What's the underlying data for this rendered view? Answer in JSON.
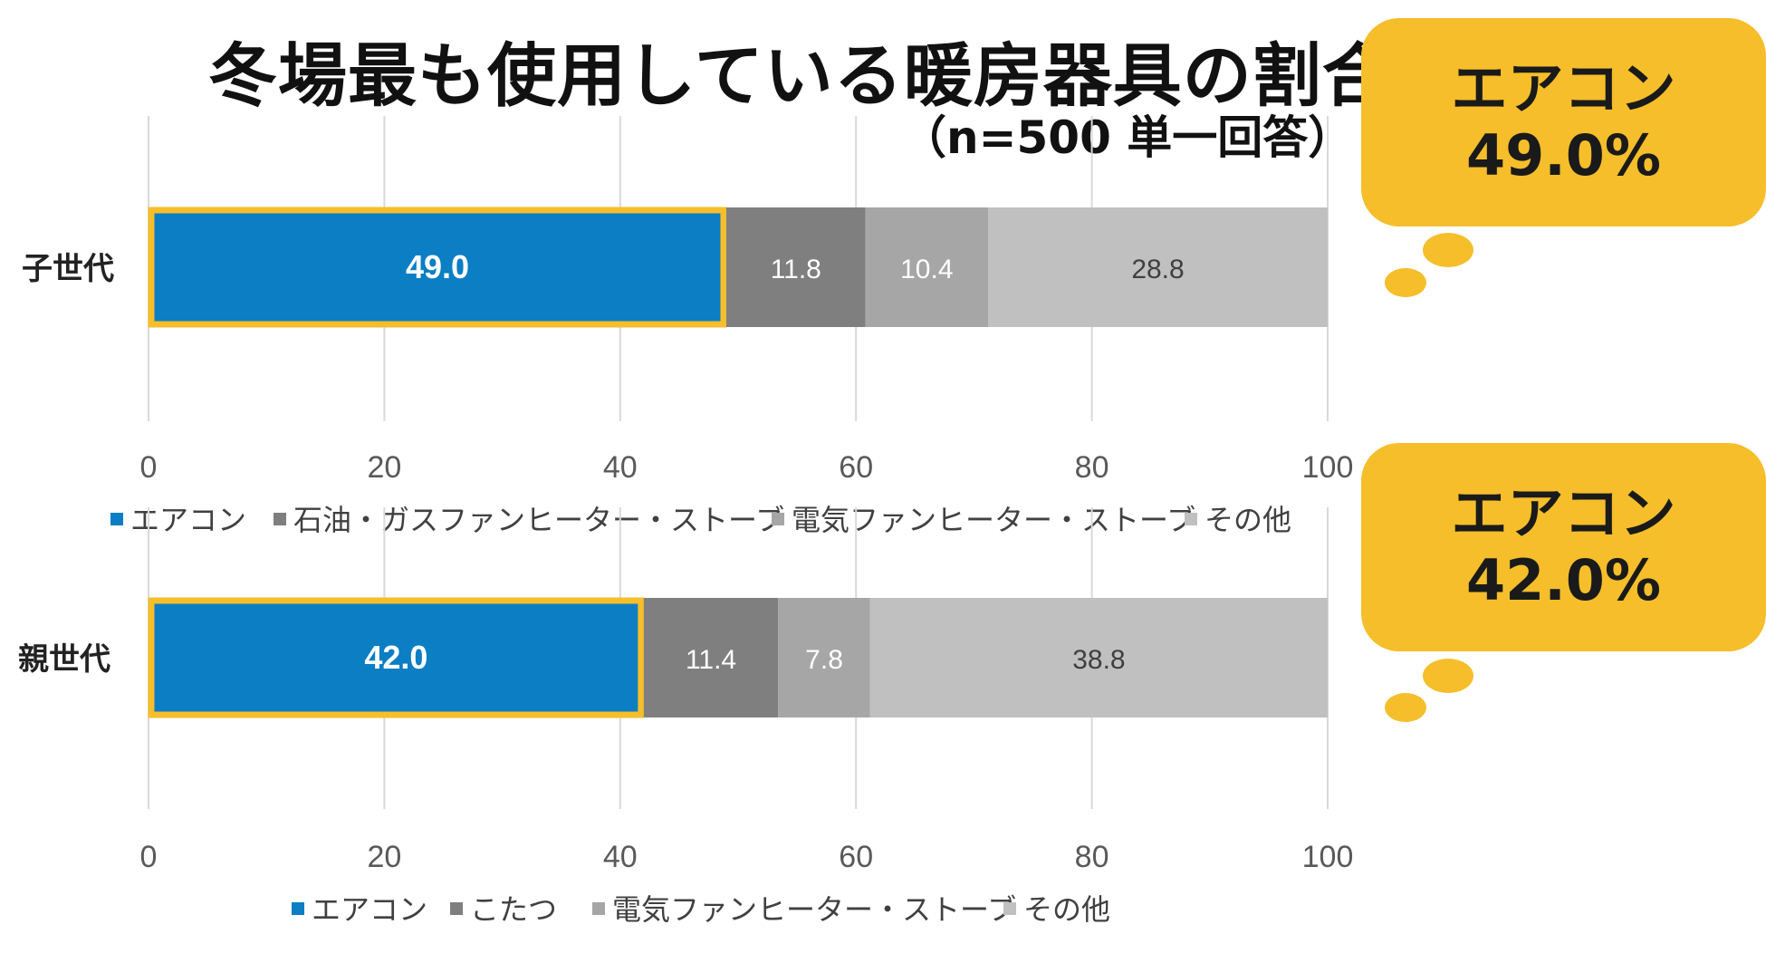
{
  "title": "冬場最も使用している暖房器具の割合",
  "subtitle": "（n=500 単一回答）",
  "callouts": [
    {
      "label": "エアコン",
      "value": "49.0%"
    },
    {
      "label": "エアコン",
      "value": "42.0%"
    }
  ],
  "colors": {
    "aircon": "#0b7ec4",
    "series2": "#7f7f7f",
    "series3": "#a6a6a6",
    "series4": "#c0c0c0",
    "highlight": "#f5be2a",
    "grid": "#d9d9d9"
  },
  "chart_data": [
    {
      "type": "bar",
      "orientation": "horizontal-stacked",
      "categories": [
        "子世代"
      ],
      "series": [
        {
          "name": "エアコン",
          "values": [
            49.0
          ]
        },
        {
          "name": "石油・ガスファンヒーター・ストーブ",
          "values": [
            11.8
          ]
        },
        {
          "name": "電気ファンヒーター・ストーブ",
          "values": [
            10.4
          ]
        },
        {
          "name": "その他",
          "values": [
            28.8
          ]
        }
      ],
      "xticks": [
        "0",
        "20",
        "40",
        "60",
        "80",
        "100"
      ],
      "xlim": [
        0,
        100
      ],
      "grid": true,
      "legend": "bottom"
    },
    {
      "type": "bar",
      "orientation": "horizontal-stacked",
      "categories": [
        "親世代"
      ],
      "series": [
        {
          "name": "エアコン",
          "values": [
            42.0
          ]
        },
        {
          "name": "こたつ",
          "values": [
            11.4
          ]
        },
        {
          "name": "電気ファンヒーター・ストーブ",
          "values": [
            7.8
          ]
        },
        {
          "name": "その他",
          "values": [
            38.8
          ]
        }
      ],
      "xticks": [
        "0",
        "20",
        "40",
        "60",
        "80",
        "100"
      ],
      "xlim": [
        0,
        100
      ],
      "grid": true,
      "legend": "bottom"
    }
  ]
}
